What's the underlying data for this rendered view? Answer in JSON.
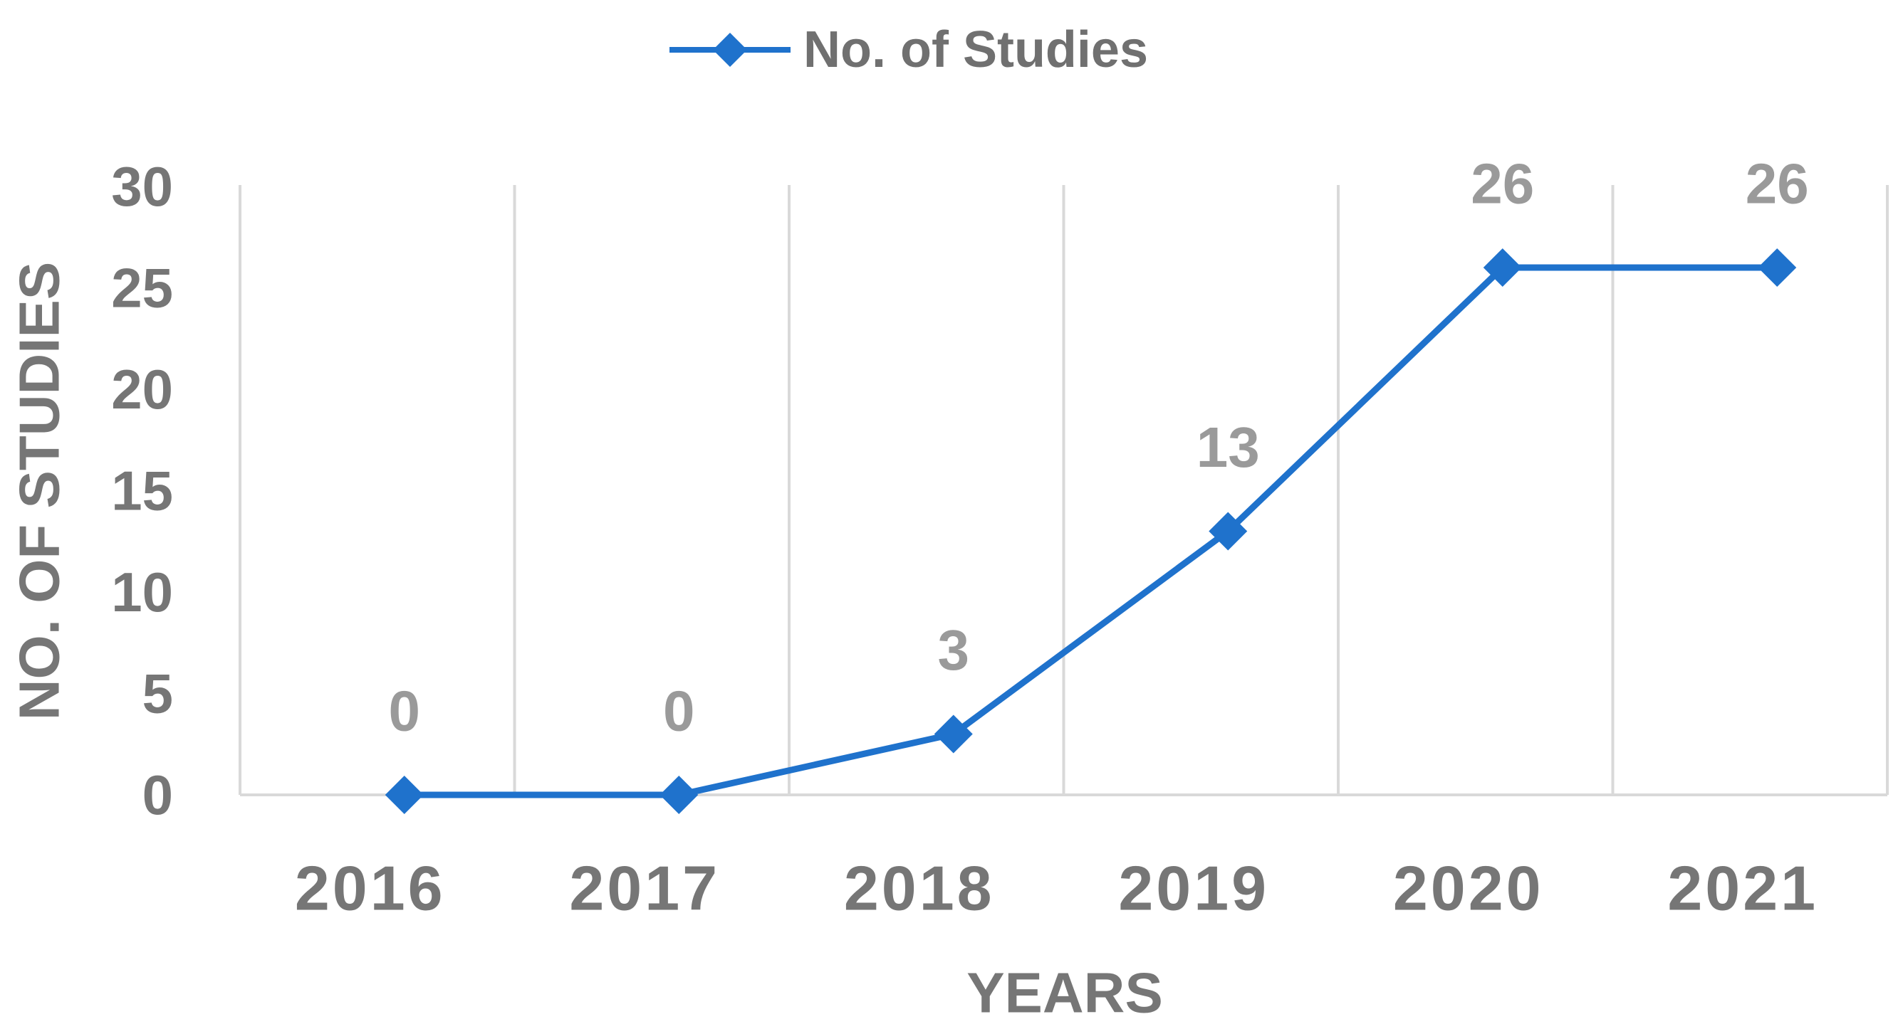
{
  "chart_data": {
    "type": "line",
    "categories": [
      "2016",
      "2017",
      "2018",
      "2019",
      "2020",
      "2021"
    ],
    "series": [
      {
        "name": "No. of Studies",
        "values": [
          0,
          0,
          3,
          13,
          26,
          26
        ],
        "color": "#1F72CC",
        "marker": "diamond"
      }
    ],
    "data_labels": [
      "0",
      "0",
      "3",
      "13",
      "26",
      "26"
    ],
    "xlabel": "YEARS",
    "ylabel": "NO. OF STUDIES",
    "ylim": [
      0,
      30
    ],
    "yticks": [
      "0",
      "5",
      "10",
      "15",
      "20",
      "25",
      "30"
    ],
    "grid": "vertical",
    "legend": "top-center"
  }
}
